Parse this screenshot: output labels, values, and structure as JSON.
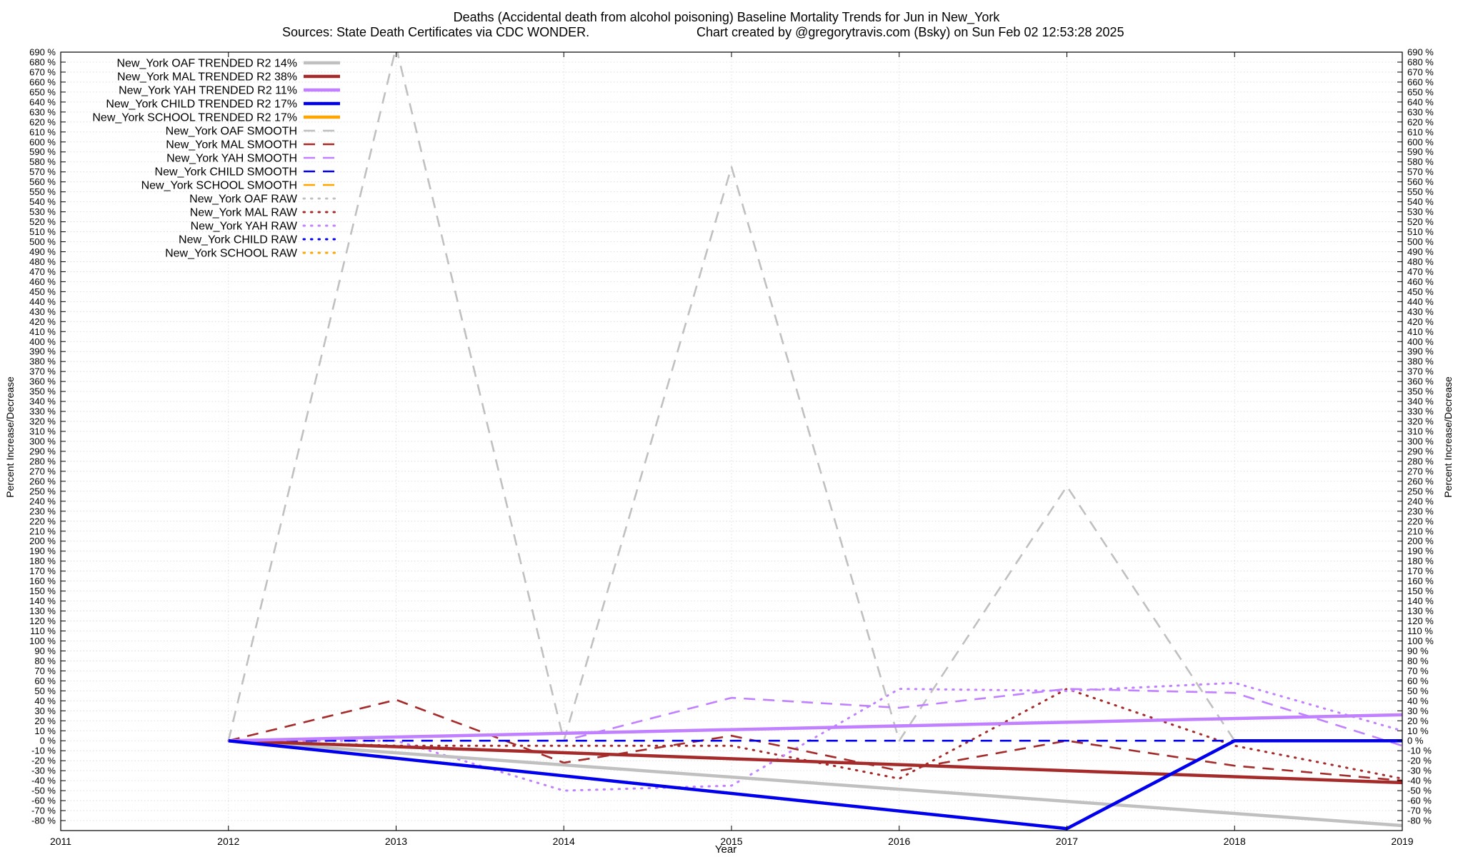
{
  "chart_data": {
    "type": "line",
    "title_line1": "Deaths (Accidental death from alcohol poisoning)  Baseline Mortality Trends for Jun in New_York",
    "title_line2_left": "Sources: State Death Certificates via CDC WONDER.",
    "title_line2_right": "Chart created by @gregorytravis.com (Bsky) on Sun Feb 02 12:53:28 2025",
    "xlabel": "Year",
    "ylabel": "Percent Increase/Decrease",
    "ylabel_right": "Percent Increase/Decrease",
    "xlim": [
      2011,
      2019
    ],
    "ylim": [
      -90,
      690
    ],
    "x_ticks": [
      2011,
      2012,
      2013,
      2014,
      2015,
      2016,
      2017,
      2018,
      2019
    ],
    "y_tick_step": 10,
    "y_tick_suffix": " %",
    "grid": true,
    "legend_position": "top-left",
    "series": [
      {
        "name": "New_York OAF TRENDED R2  14%",
        "color": "#c0c0c0",
        "style": "solid",
        "x": [
          2012,
          2019
        ],
        "y": [
          0,
          -85
        ]
      },
      {
        "name": "New_York MAL TRENDED R2  38%",
        "color": "#a52a2a",
        "style": "solid",
        "x": [
          2012,
          2019
        ],
        "y": [
          0,
          -42
        ]
      },
      {
        "name": "New_York YAH TRENDED R2  11%",
        "color": "#c080ff",
        "style": "solid",
        "x": [
          2012,
          2019
        ],
        "y": [
          0,
          26
        ]
      },
      {
        "name": "New_York CHILD TRENDED R2  17%",
        "color": "#0000ee",
        "style": "solid",
        "x": [
          2012,
          2017,
          2018,
          2019
        ],
        "y": [
          0,
          -88,
          0,
          0
        ]
      },
      {
        "name": "New_York SCHOOL TRENDED R2  17%",
        "color": "#ffa500",
        "style": "solid",
        "x": [],
        "y": []
      },
      {
        "name": "New_York OAF SMOOTH",
        "color": "#c0c0c0",
        "style": "dashed",
        "x": [
          2012,
          2013,
          2014,
          2015,
          2016,
          2017,
          2018,
          2019
        ],
        "y": [
          0,
          695,
          0,
          575,
          0,
          255,
          0,
          0
        ]
      },
      {
        "name": "New_York MAL SMOOTH",
        "color": "#a52a2a",
        "style": "dashed",
        "x": [
          2012,
          2013,
          2014,
          2015,
          2016,
          2017,
          2018,
          2019
        ],
        "y": [
          0,
          41,
          -22,
          5,
          -30,
          0,
          -25,
          -40
        ]
      },
      {
        "name": "New_York YAH SMOOTH",
        "color": "#c080ff",
        "style": "dashed",
        "x": [
          2012,
          2013,
          2014,
          2015,
          2016,
          2017,
          2018,
          2019
        ],
        "y": [
          0,
          0,
          0,
          43,
          33,
          52,
          48,
          -5
        ]
      },
      {
        "name": "New_York CHILD SMOOTH",
        "color": "#0000ee",
        "style": "dashed",
        "x": [
          2012,
          2019
        ],
        "y": [
          0,
          0
        ]
      },
      {
        "name": "New_York SCHOOL SMOOTH",
        "color": "#ffa500",
        "style": "dashed",
        "x": [],
        "y": []
      },
      {
        "name": "New_York OAF RAW",
        "color": "#c0c0c0",
        "style": "dotted",
        "x": [],
        "y": []
      },
      {
        "name": "New_York MAL RAW",
        "color": "#a52a2a",
        "style": "dotted",
        "x": [
          2012,
          2013,
          2014,
          2015,
          2016,
          2017,
          2018,
          2019
        ],
        "y": [
          0,
          -5,
          -5,
          -5,
          -38,
          52,
          -5,
          -38
        ]
      },
      {
        "name": "New_York YAH RAW",
        "color": "#c080ff",
        "style": "dotted",
        "x": [
          2012,
          2013,
          2014,
          2015,
          2016,
          2017,
          2018,
          2019
        ],
        "y": [
          0,
          0,
          -50,
          -45,
          52,
          50,
          58,
          10
        ]
      },
      {
        "name": "New_York CHILD RAW",
        "color": "#0000ee",
        "style": "dotted",
        "x": [],
        "y": []
      },
      {
        "name": "New_York SCHOOL RAW",
        "color": "#ffa500",
        "style": "dotted",
        "x": [],
        "y": []
      }
    ]
  }
}
